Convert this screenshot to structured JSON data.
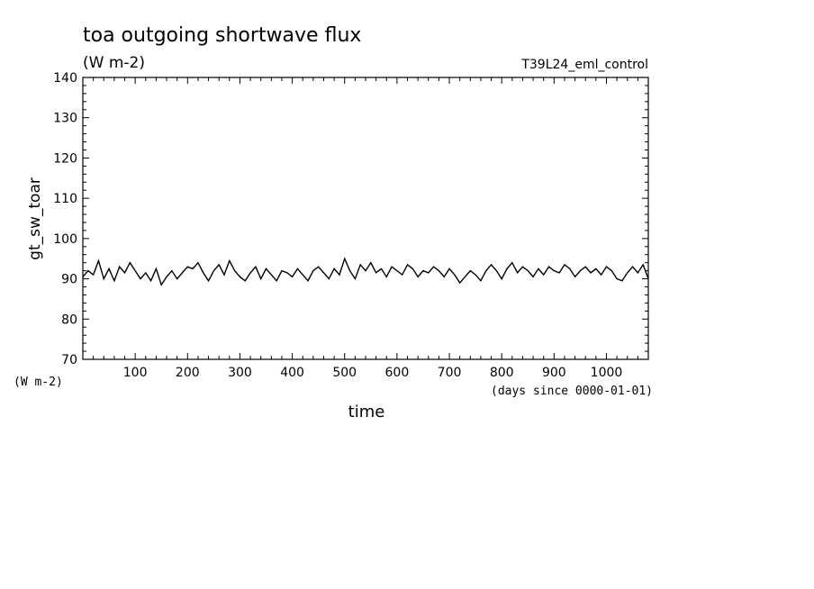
{
  "title": "toa outgoing shortwave flux",
  "subtitle": "(W m-2)",
  "experiment": "T39L24_eml_control",
  "ylabel_left": "gt_sw_toar",
  "y_unit_label": "(W m-2)",
  "x_unit_label": "(days since 0000-01-01)",
  "xlabel": "time",
  "chart_data": {
    "type": "line",
    "title": "toa outgoing shortwave flux",
    "units": "(W m-2)",
    "xlabel": "time",
    "ylabel": "gt_sw_toar",
    "xlim": [
      0,
      1080
    ],
    "ylim": [
      70,
      140
    ],
    "x_ticks": [
      100,
      200,
      300,
      400,
      500,
      600,
      700,
      800,
      900,
      1000
    ],
    "y_ticks": [
      70,
      80,
      90,
      100,
      110,
      120,
      130,
      140
    ],
    "grid": false,
    "series": [
      {
        "x": [
          0,
          10,
          20,
          30,
          40,
          50,
          60,
          70,
          80,
          90,
          100,
          110,
          120,
          130,
          140,
          150,
          160,
          170,
          180,
          190,
          200,
          210,
          220,
          230,
          240,
          250,
          260,
          270,
          280,
          290,
          300,
          310,
          320,
          330,
          340,
          350,
          360,
          370,
          380,
          390,
          400,
          410,
          420,
          430,
          440,
          450,
          460,
          470,
          480,
          490,
          500,
          510,
          520,
          530,
          540,
          550,
          560,
          570,
          580,
          590,
          600,
          610,
          620,
          630,
          640,
          650,
          660,
          670,
          680,
          690,
          700,
          710,
          720,
          730,
          740,
          750,
          760,
          770,
          780,
          790,
          800,
          810,
          820,
          830,
          840,
          850,
          860,
          870,
          880,
          890,
          900,
          910,
          920,
          930,
          940,
          950,
          960,
          970,
          980,
          990,
          1000,
          1010,
          1020,
          1030,
          1040,
          1050,
          1060,
          1070,
          1080
        ],
        "values": [
          90.5,
          92.0,
          91.0,
          94.5,
          90.0,
          92.5,
          89.5,
          93.0,
          91.5,
          94.0,
          92.0,
          90.0,
          91.5,
          89.5,
          92.5,
          88.5,
          90.5,
          92.0,
          90.0,
          91.5,
          93.0,
          92.5,
          94.0,
          91.5,
          89.5,
          92.0,
          93.5,
          91.0,
          94.5,
          92.0,
          90.5,
          89.5,
          91.5,
          93.0,
          90.0,
          92.5,
          91.0,
          89.5,
          92.0,
          91.5,
          90.5,
          92.5,
          91.0,
          89.5,
          92.0,
          93.0,
          91.5,
          90.0,
          92.5,
          91.0,
          95.0,
          92.0,
          90.0,
          93.5,
          92.0,
          94.0,
          91.5,
          92.5,
          90.5,
          93.0,
          92.0,
          91.0,
          93.5,
          92.5,
          90.5,
          92.0,
          91.5,
          93.0,
          92.0,
          90.5,
          92.5,
          91.0,
          89.0,
          90.5,
          92.0,
          91.0,
          89.5,
          92.0,
          93.5,
          92.0,
          90.0,
          92.5,
          94.0,
          91.5,
          93.0,
          92.0,
          90.5,
          92.5,
          91.0,
          93.0,
          92.0,
          91.5,
          93.5,
          92.5,
          90.5,
          92.0,
          93.0,
          91.5,
          92.5,
          91.0,
          93.0,
          92.0,
          90.0,
          89.5,
          91.5,
          93.0,
          91.5,
          93.5,
          90.0
        ]
      }
    ]
  }
}
